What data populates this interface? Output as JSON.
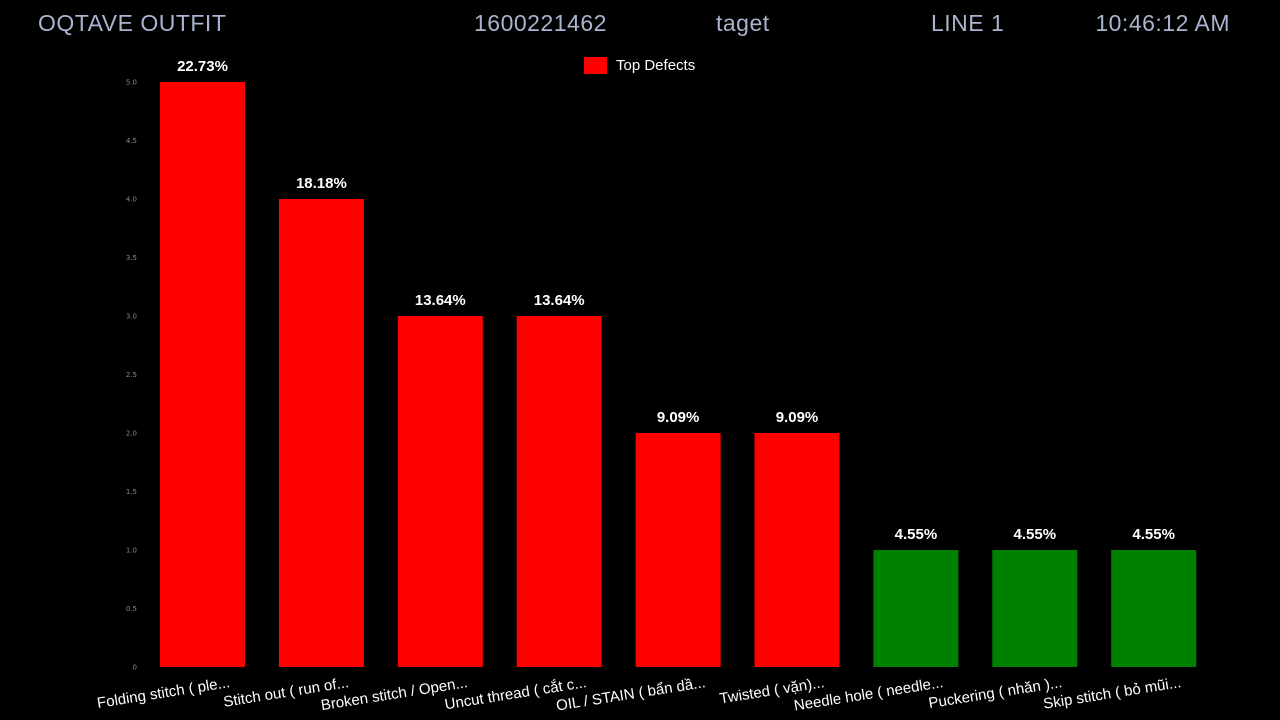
{
  "header": {
    "company": "OQTAVE OUTFIT",
    "order_no": "1600221462",
    "target": "taget",
    "line": "LINE 1",
    "time": "10:46:12 AM"
  },
  "chart_data": {
    "type": "bar",
    "legend": {
      "label": "Top Defects",
      "color": "#ff0000",
      "position": "top-center"
    },
    "categories": [
      "Folding stitch ( ple...",
      "Stitch out  ( run of...",
      "Broken stitch / Open...",
      "Uncut thread ( cắt c...",
      "OIL / STAIN ( bẩn dầ...",
      "Twisted ( vặn)...",
      "Needle hole ( needle...",
      "Puckering ( nhăn )...",
      "Skip stitch ( bỏ mũi..."
    ],
    "values": [
      5,
      4,
      3,
      3,
      2,
      2,
      1,
      1,
      1
    ],
    "labels": [
      "22.73%",
      "18.18%",
      "13.64%",
      "13.64%",
      "9.09%",
      "9.09%",
      "4.55%",
      "4.55%",
      "4.55%"
    ],
    "colors": [
      "#ff0000",
      "#ff0000",
      "#ff0000",
      "#ff0000",
      "#ff0000",
      "#ff0000",
      "#008000",
      "#008000",
      "#008000"
    ],
    "yticks": [
      "0",
      "0.5",
      "1.0",
      "1.5",
      "2.0",
      "2.5",
      "3.0",
      "3.5",
      "4.0",
      "4.5",
      "5.0"
    ],
    "ylim": [
      0,
      5
    ],
    "grid": false
  }
}
